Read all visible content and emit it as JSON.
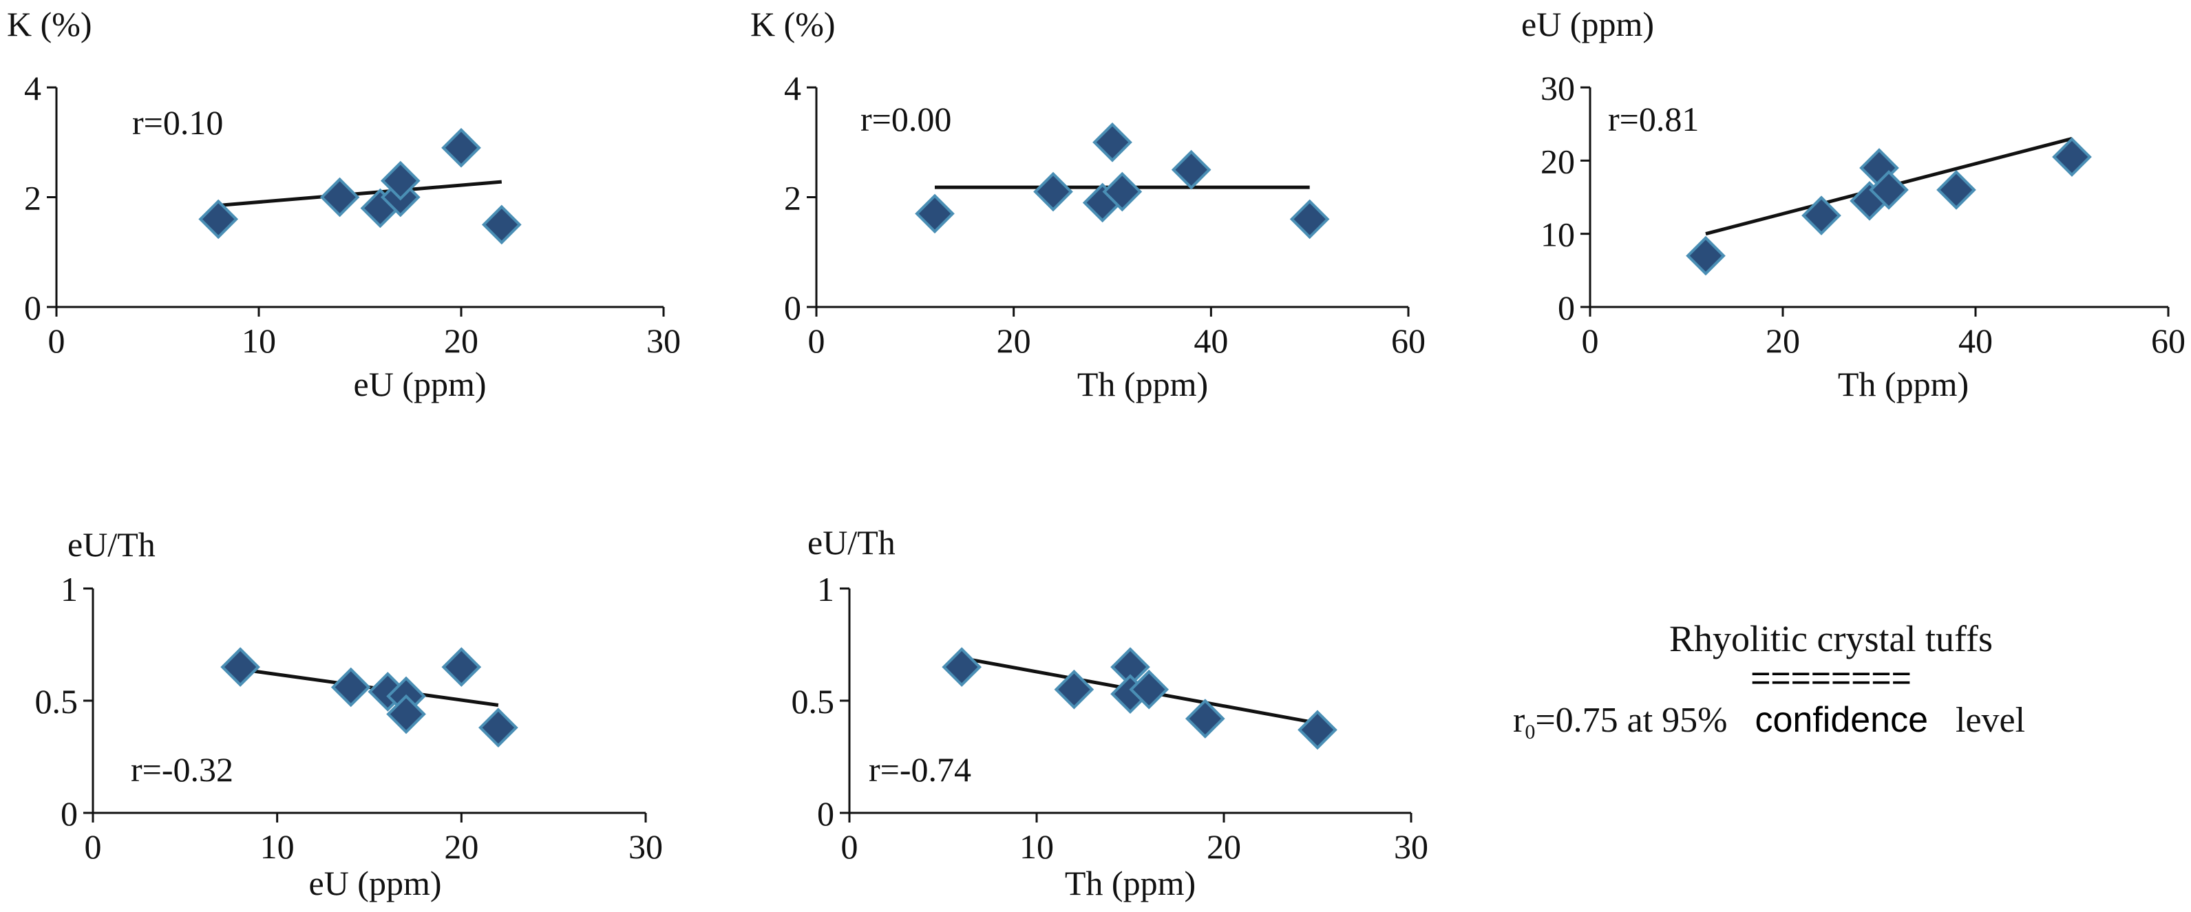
{
  "chart_data": [
    {
      "type": "scatter",
      "ylabel": "K (%)",
      "xlabel": "eU (ppm)",
      "xlim": [
        0,
        30
      ],
      "ylim": [
        0,
        4
      ],
      "xticks": [
        "0",
        "10",
        "20",
        "30"
      ],
      "yticks": [
        "0",
        "2",
        "4"
      ],
      "annotation": "r=0.10",
      "points": [
        [
          8,
          1.6
        ],
        [
          14,
          2.0
        ],
        [
          16,
          1.8
        ],
        [
          17,
          2.0
        ],
        [
          17,
          2.3
        ],
        [
          20,
          2.9
        ],
        [
          22,
          1.5
        ]
      ],
      "trendline": [
        [
          8,
          1.85
        ],
        [
          22,
          2.28
        ]
      ]
    },
    {
      "type": "scatter",
      "ylabel": "K (%)",
      "xlabel": "Th (ppm)",
      "xlim": [
        0,
        60
      ],
      "ylim": [
        0,
        4
      ],
      "xticks": [
        "0",
        "20",
        "40",
        "60"
      ],
      "yticks": [
        "0",
        "2",
        "4"
      ],
      "annotation": "r=0.00",
      "points": [
        [
          12,
          1.7
        ],
        [
          24,
          2.1
        ],
        [
          29,
          1.9
        ],
        [
          31,
          2.1
        ],
        [
          30,
          3.0
        ],
        [
          38,
          2.5
        ],
        [
          50,
          1.6
        ]
      ],
      "trendline": [
        [
          12,
          2.18
        ],
        [
          50,
          2.18
        ]
      ]
    },
    {
      "type": "scatter",
      "ylabel": "eU (ppm)",
      "xlabel": "Th (ppm)",
      "xlim": [
        0,
        60
      ],
      "ylim": [
        0,
        30
      ],
      "xticks": [
        "0",
        "20",
        "40",
        "60"
      ],
      "yticks": [
        "0",
        "10",
        "20",
        "30"
      ],
      "annotation": "r=0.81",
      "points": [
        [
          12,
          7
        ],
        [
          24,
          12.5
        ],
        [
          29,
          14.5
        ],
        [
          30,
          19
        ],
        [
          31,
          16
        ],
        [
          38,
          16
        ],
        [
          50,
          20.5
        ]
      ],
      "trendline": [
        [
          12,
          10
        ],
        [
          50,
          23
        ]
      ]
    },
    {
      "type": "scatter",
      "ylabel": "eU/Th",
      "xlabel": "eU (ppm)",
      "xlim": [
        0,
        30
      ],
      "ylim": [
        0,
        1
      ],
      "xticks": [
        "0",
        "10",
        "20",
        "30"
      ],
      "yticks": [
        "0",
        "0.5",
        "1"
      ],
      "annotation": "r=-0.32",
      "points": [
        [
          8,
          0.65
        ],
        [
          14,
          0.56
        ],
        [
          16,
          0.54
        ],
        [
          17,
          0.52
        ],
        [
          17,
          0.44
        ],
        [
          20,
          0.65
        ],
        [
          22,
          0.38
        ]
      ],
      "trendline": [
        [
          8,
          0.64
        ],
        [
          22,
          0.48
        ]
      ]
    },
    {
      "type": "scatter",
      "ylabel": "eU/Th",
      "xlabel": "Th (ppm)",
      "xlim": [
        0,
        30
      ],
      "ylim": [
        0,
        1
      ],
      "xticks": [
        "0",
        "10",
        "20",
        "30"
      ],
      "yticks": [
        "0",
        "0.5",
        "1"
      ],
      "annotation": "r=-0.74",
      "points": [
        [
          6,
          0.65
        ],
        [
          12,
          0.55
        ],
        [
          15,
          0.65
        ],
        [
          15,
          0.53
        ],
        [
          16,
          0.55
        ],
        [
          19,
          0.42
        ],
        [
          25,
          0.37
        ]
      ],
      "trendline": [
        [
          6,
          0.69
        ],
        [
          25,
          0.4
        ]
      ]
    }
  ],
  "legend": {
    "title": "Rhyolitic crystal tuffs",
    "dashes": "========",
    "note_r0": "r",
    "note_sub": "0",
    "note_rest": "=0.75 at 95%",
    "note_bold": "confidence",
    "note_end": "level"
  },
  "colors": {
    "marker_fill": "#2a4d7a",
    "marker_stroke": "#4a8fb5",
    "axis": "#111111"
  }
}
